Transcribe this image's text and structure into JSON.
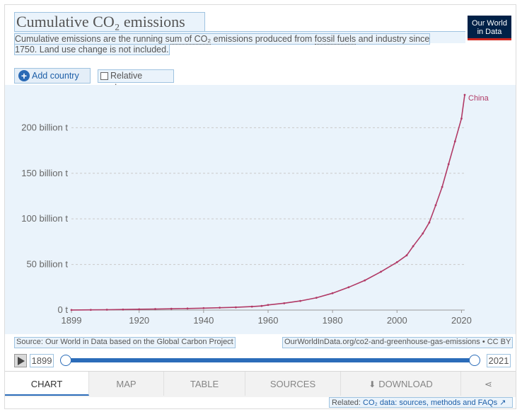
{
  "header": {
    "title": "Cumulative CO₂ emissions",
    "subtitle_pre": "Cumulative emissions are the running ",
    "subtitle_link1": "sum of CO₂",
    "subtitle_mid": " emissions produced from ",
    "subtitle_link2": "fossil fuels",
    "subtitle_post": " and industry since",
    "subtitle_line2": "1750. Land use change is not included.",
    "logo_line1": "Our World",
    "logo_line2": "in Data"
  },
  "controls": {
    "add_country": "Add country",
    "relative_change": "Relative change"
  },
  "chart_data": {
    "type": "line",
    "title": "Cumulative CO₂ emissions",
    "xlabel": "",
    "ylabel": "",
    "xlim": [
      1899,
      2021
    ],
    "ylim": [
      0,
      236
    ],
    "x_ticks": [
      1899,
      1920,
      1940,
      1960,
      1980,
      2000,
      2020
    ],
    "y_ticks": [
      0,
      50,
      100,
      150,
      200
    ],
    "y_tick_labels": [
      "0 t",
      "50 billion t",
      "100 billion t",
      "150 billion t",
      "200 billion t"
    ],
    "grid": "horizontal dashed",
    "series": [
      {
        "name": "China",
        "color": "#b13a66",
        "x": [
          1899,
          1905,
          1910,
          1915,
          1920,
          1925,
          1930,
          1935,
          1940,
          1945,
          1950,
          1955,
          1958,
          1960,
          1965,
          1970,
          1975,
          1980,
          1985,
          1990,
          1995,
          2000,
          2003,
          2005,
          2008,
          2010,
          2012,
          2014,
          2016,
          2018,
          2020,
          2021
        ],
        "y": [
          0.1,
          0.2,
          0.4,
          0.6,
          0.9,
          1.1,
          1.4,
          1.7,
          2.1,
          2.6,
          3.0,
          3.8,
          4.5,
          5.6,
          7.5,
          10.0,
          13.5,
          18.5,
          25.0,
          32.5,
          42.0,
          52.5,
          60.0,
          70.0,
          84.0,
          96.0,
          115.0,
          135.0,
          160.0,
          185.0,
          210.0,
          236.0
        ]
      }
    ]
  },
  "footer": {
    "source": "Source: Our World in Data based on the Global Carbon Project",
    "license": "OurWorldInData.org/co2-and-greenhouse-gas-emissions • CC BY"
  },
  "timeline": {
    "start_year": "1899",
    "end_year": "2021",
    "start_fraction": 0,
    "end_fraction": 1
  },
  "tabs": [
    {
      "label": "CHART",
      "active": true
    },
    {
      "label": "MAP"
    },
    {
      "label": "TABLE"
    },
    {
      "label": "SOURCES"
    },
    {
      "label": "DOWNLOAD"
    }
  ],
  "related": {
    "prefix": "Related:",
    "link": "CO₂ data: sources, methods and FAQs",
    "icon": "external-link-icon"
  },
  "colors": {
    "accent": "#2b6cb9",
    "series": "#b13a66",
    "logo_bg": "#002147",
    "logo_bar": "#ce261e"
  }
}
